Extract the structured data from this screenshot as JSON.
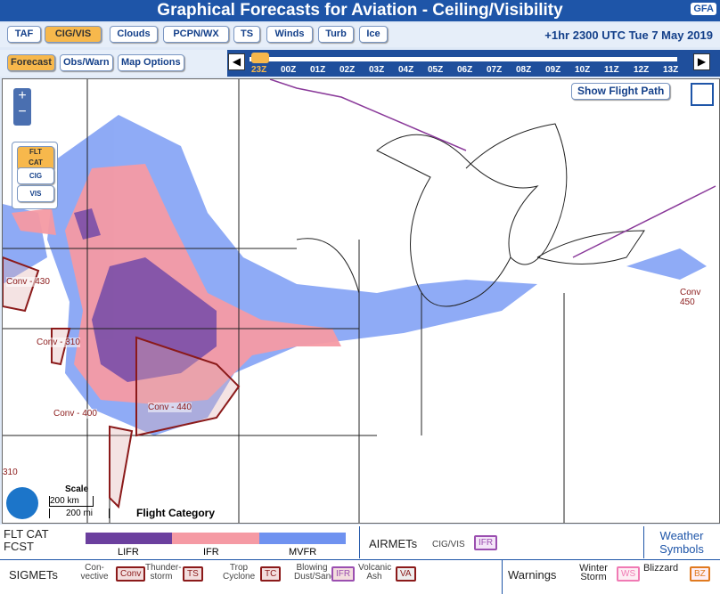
{
  "header": {
    "title": "Graphical Forecasts for Aviation - Ceiling/Visibility",
    "logo": "GFA"
  },
  "nav": {
    "products": [
      "TAF",
      "CIG/VIS",
      "Clouds",
      "PCPN/WX",
      "TS",
      "Winds",
      "Turb",
      "Ice"
    ],
    "valid_time": "+1hr 2300 UTC Tue 7 May 2019",
    "modes": [
      "Forecast",
      "Obs/Warn",
      "Map Options"
    ],
    "times": [
      "23Z",
      "00Z",
      "01Z",
      "02Z",
      "03Z",
      "04Z",
      "05Z",
      "06Z",
      "07Z",
      "08Z",
      "09Z",
      "10Z",
      "11Z",
      "12Z",
      "13Z"
    ]
  },
  "map": {
    "zoom_in": "+",
    "zoom_out": "−",
    "layers": [
      "FLT CAT",
      "CIG",
      "VIS"
    ],
    "flight_path": "Show Flight Path",
    "sigmet_labels": [
      "Conv - 430",
      "Conv - 310",
      "Conv - 400",
      "Conv - 440",
      "Conv",
      "450",
      "310"
    ],
    "scale": {
      "title": "Scale",
      "km": "200 km",
      "mi": "200 mi"
    },
    "overlay_title": "Flight Category"
  },
  "legend": {
    "fcst_title": [
      "FLT CAT",
      "FCST"
    ],
    "categories": [
      "LIFR",
      "IFR",
      "MVFR"
    ],
    "airmets": {
      "title": "AIRMETs",
      "item": "CIG/VIS",
      "badge": "IFR"
    },
    "weather_symbols": "Weather Symbols",
    "sigmets": {
      "title": "SIGMETs",
      "items": [
        {
          "label": "Con-vective",
          "badge": "Conv"
        },
        {
          "label": "Thunder-storm",
          "badge": "TS"
        },
        {
          "label": "Trop Cyclone",
          "badge": "TC"
        },
        {
          "label": "Blowing Dust/Sand",
          "badge": "IFR"
        },
        {
          "label": "Volcanic Ash",
          "badge": "VA"
        }
      ]
    },
    "warnings": {
      "title": "Warnings",
      "items": [
        {
          "label": "Winter Storm",
          "badge": "WS"
        },
        {
          "label": "Blizzard",
          "badge": "BZ"
        }
      ]
    }
  }
}
